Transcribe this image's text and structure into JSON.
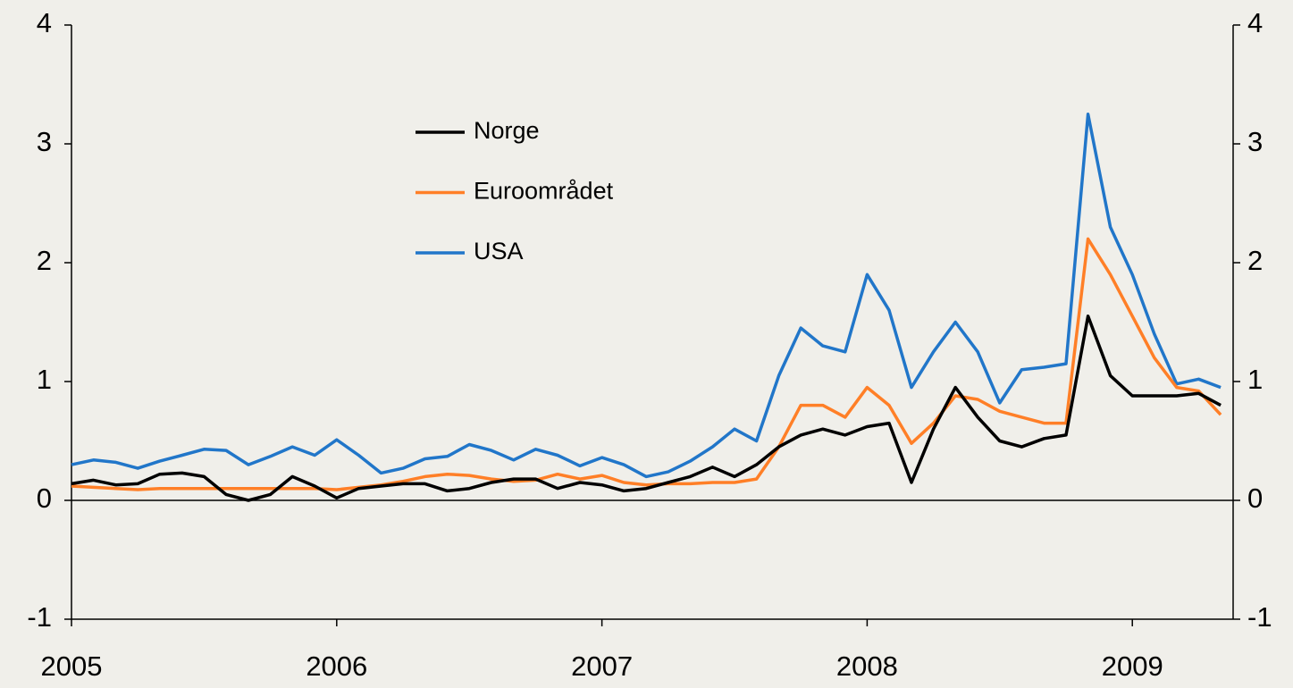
{
  "chart_data": {
    "type": "line",
    "x": [
      2005,
      2005.083,
      2005.167,
      2005.25,
      2005.333,
      2005.417,
      2005.5,
      2005.583,
      2005.667,
      2005.75,
      2005.833,
      2005.917,
      2006,
      2006.083,
      2006.167,
      2006.25,
      2006.333,
      2006.417,
      2006.5,
      2006.583,
      2006.667,
      2006.75,
      2006.833,
      2006.917,
      2007,
      2007.083,
      2007.167,
      2007.25,
      2007.333,
      2007.417,
      2007.5,
      2007.583,
      2007.667,
      2007.75,
      2007.833,
      2007.917,
      2008,
      2008.083,
      2008.167,
      2008.25,
      2008.333,
      2008.417,
      2008.5,
      2008.583,
      2008.667,
      2008.75,
      2008.833,
      2008.917,
      2009,
      2009.083,
      2009.167,
      2009.25,
      2009.333
    ],
    "series": [
      {
        "name": "Norge",
        "color": "#000000",
        "values": [
          0.14,
          0.17,
          0.13,
          0.14,
          0.22,
          0.23,
          0.2,
          0.05,
          0,
          0.05,
          0.2,
          0.12,
          0.02,
          0.1,
          0.12,
          0.14,
          0.14,
          0.08,
          0.1,
          0.15,
          0.18,
          0.18,
          0.1,
          0.15,
          0.13,
          0.08,
          0.1,
          0.15,
          0.2,
          0.28,
          0.2,
          0.3,
          0.45,
          0.55,
          0.6,
          0.55,
          0.62,
          0.65,
          0.15,
          0.6,
          0.95,
          0.7,
          0.5,
          0.45,
          0.52,
          0.55,
          1.55,
          1.05,
          0.88,
          0.88,
          0.88,
          0.9,
          0.8
        ]
      },
      {
        "name": "Euroområdet",
        "color": "#ff7f27",
        "values": [
          0.12,
          0.11,
          0.1,
          0.09,
          0.1,
          0.1,
          0.1,
          0.1,
          0.1,
          0.1,
          0.1,
          0.1,
          0.09,
          0.11,
          0.13,
          0.16,
          0.2,
          0.22,
          0.21,
          0.18,
          0.16,
          0.17,
          0.22,
          0.18,
          0.21,
          0.15,
          0.13,
          0.14,
          0.14,
          0.15,
          0.15,
          0.18,
          0.45,
          0.8,
          0.8,
          0.7,
          0.95,
          0.8,
          0.48,
          0.65,
          0.88,
          0.85,
          0.75,
          0.7,
          0.65,
          0.65,
          2.2,
          1.9,
          1.55,
          1.2,
          0.95,
          0.92,
          0.72
        ]
      },
      {
        "name": "USA",
        "color": "#2176c9",
        "values": [
          0.3,
          0.34,
          0.32,
          0.27,
          0.33,
          0.38,
          0.43,
          0.42,
          0.3,
          0.37,
          0.45,
          0.38,
          0.51,
          0.38,
          0.23,
          0.27,
          0.35,
          0.37,
          0.47,
          0.42,
          0.34,
          0.43,
          0.38,
          0.29,
          0.36,
          0.3,
          0.2,
          0.24,
          0.33,
          0.45,
          0.6,
          0.5,
          1.05,
          1.45,
          1.3,
          1.25,
          1.9,
          1.6,
          0.95,
          1.25,
          1.5,
          1.25,
          0.82,
          1.1,
          1.12,
          1.15,
          3.25,
          2.3,
          1.9,
          1.4,
          0.98,
          1.02,
          0.95
        ]
      }
    ],
    "xlim": [
      2005,
      2009.38
    ],
    "xticks": [
      2005,
      2006,
      2007,
      2008,
      2009
    ],
    "ylim": [
      -1,
      4
    ],
    "yticks": [
      -1,
      0,
      1,
      2,
      3,
      4
    ],
    "y2lim": [
      -1,
      4
    ],
    "y2ticks": [
      -1,
      0,
      1,
      2,
      3,
      4
    ],
    "legend": "top"
  }
}
